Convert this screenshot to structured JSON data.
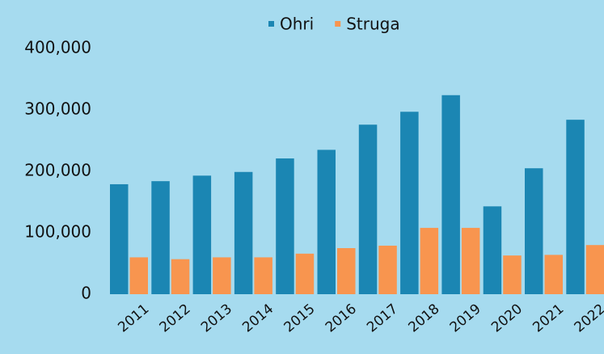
{
  "chart_data": {
    "type": "bar",
    "categories": [
      "2011",
      "2012",
      "2013",
      "2014",
      "2015",
      "2016",
      "2017",
      "2018",
      "2019",
      "2020",
      "2021",
      "2022"
    ],
    "series": [
      {
        "name": "Ohri",
        "color": "#1b86b3",
        "values": [
          179000,
          184000,
          193000,
          199000,
          221000,
          235000,
          276000,
          297000,
          324000,
          143000,
          205000,
          284000
        ]
      },
      {
        "name": "Struga",
        "color": "#f8954f",
        "values": [
          60000,
          57000,
          60000,
          60000,
          66000,
          75000,
          79000,
          108000,
          108000,
          63000,
          64000,
          80000
        ]
      }
    ],
    "ylim": [
      0,
      400000
    ],
    "yticks": [
      0,
      {
        "value": 100000,
        "label": "100,000"
      },
      {
        "value": 200000,
        "label": "200,000"
      },
      {
        "value": 300000,
        "label": "300,000"
      },
      {
        "value": 400000,
        "label": "400,000"
      }
    ],
    "legend": "top"
  }
}
